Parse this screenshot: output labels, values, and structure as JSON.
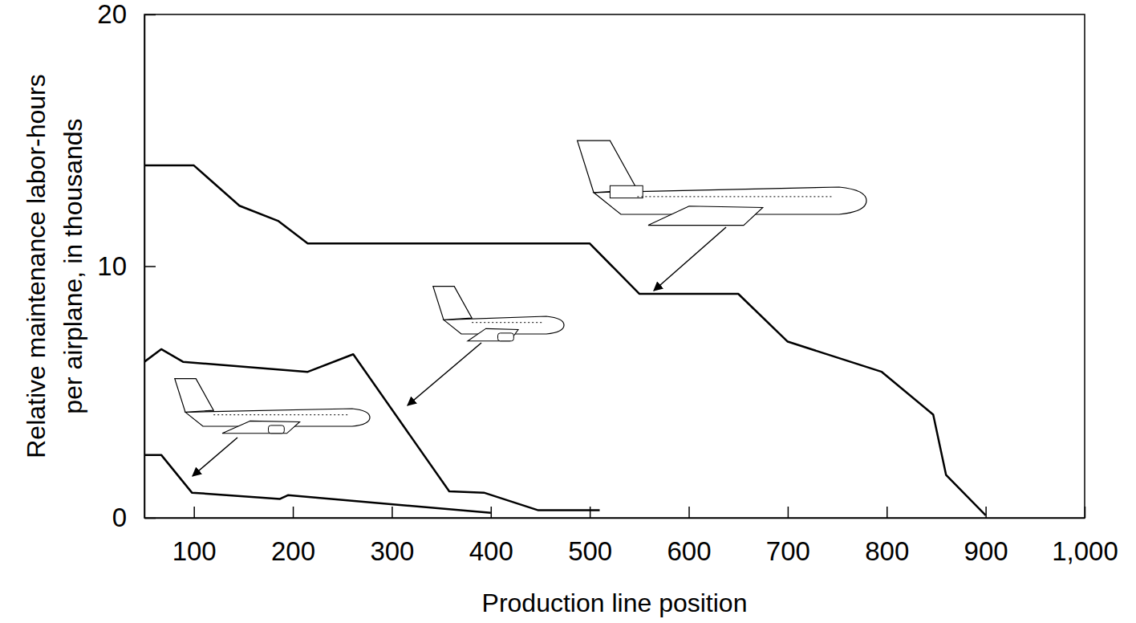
{
  "chart_data": {
    "type": "line",
    "x_label": "Production line position",
    "y_label": "Relative maintenance labor-hours per airplane, in thousands",
    "xlim": [
      50,
      1000
    ],
    "xticks": [
      100,
      200,
      300,
      400,
      500,
      600,
      700,
      800,
      900,
      {
        "value": 1000,
        "label": "1,000"
      }
    ],
    "ylim": [
      0,
      20
    ],
    "yticks": [
      0,
      10,
      20
    ],
    "grid": false,
    "series": [
      {
        "color": "#000000",
        "x": [
          50,
          100,
          146,
          185,
          215,
          500,
          550,
          650,
          700,
          795,
          847,
          860,
          900
        ],
        "values": [
          14,
          14,
          12.4,
          11.8,
          10.9,
          10.9,
          8.9,
          8.9,
          7.0,
          5.8,
          4.1,
          1.7,
          0.1
        ]
      },
      {
        "color": "#000000",
        "x": [
          50,
          67,
          89,
          215,
          261,
          358,
          393,
          448,
          510
        ],
        "values": [
          6.2,
          6.7,
          6.2,
          5.8,
          6.5,
          1.05,
          1.0,
          0.3,
          0.3
        ]
      },
      {
        "color": "#000000",
        "x": [
          50,
          67,
          98,
          187,
          195,
          400
        ],
        "values": [
          2.5,
          2.5,
          1.0,
          0.75,
          0.9,
          0.2
        ]
      }
    ]
  }
}
